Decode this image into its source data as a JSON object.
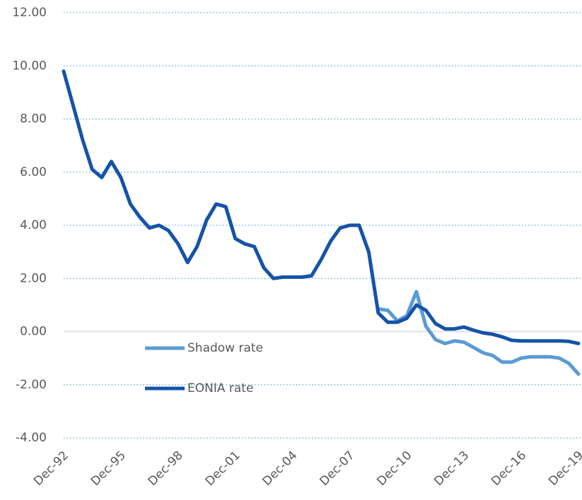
{
  "chart_data": {
    "type": "line",
    "categories": [
      "Dec-92",
      null,
      null,
      null,
      null,
      null,
      "Dec-95",
      null,
      null,
      null,
      null,
      null,
      "Dec-98",
      null,
      null,
      null,
      null,
      null,
      "Dec-01",
      null,
      null,
      null,
      null,
      null,
      "Dec-04",
      null,
      null,
      null,
      null,
      null,
      "Dec-07",
      null,
      null,
      null,
      null,
      null,
      "Dec-10",
      null,
      null,
      null,
      null,
      null,
      "Dec-13",
      null,
      null,
      null,
      null,
      null,
      "Dec-16",
      null,
      null,
      null,
      null,
      null,
      "Dec-19"
    ],
    "series": [
      {
        "name": "Shadow rate",
        "color": "#5b9bd5",
        "values": [
          null,
          null,
          null,
          null,
          null,
          null,
          null,
          null,
          null,
          null,
          null,
          null,
          null,
          null,
          null,
          null,
          null,
          null,
          null,
          null,
          null,
          null,
          null,
          null,
          null,
          null,
          null,
          null,
          null,
          null,
          null,
          null,
          null,
          0.85,
          0.8,
          0.4,
          0.6,
          1.5,
          0.2,
          -0.3,
          -0.45,
          -0.35,
          -0.4,
          -0.6,
          -0.8,
          -0.9,
          -1.15,
          -1.15,
          -1.0,
          -0.95,
          -0.95,
          -0.95,
          -1.0,
          -1.2,
          -1.6
        ]
      },
      {
        "name": "EONIA rate",
        "color": "#1553a8",
        "values": [
          9.8,
          8.5,
          7.2,
          6.1,
          5.8,
          6.4,
          5.8,
          4.8,
          4.3,
          3.9,
          4.0,
          3.8,
          3.3,
          2.6,
          3.2,
          4.2,
          4.8,
          4.7,
          3.5,
          3.3,
          3.2,
          2.4,
          2.0,
          2.05,
          2.05,
          2.05,
          2.1,
          2.7,
          3.4,
          3.9,
          4.0,
          4.0,
          3.0,
          0.7,
          0.35,
          0.35,
          0.5,
          1.0,
          0.8,
          0.3,
          0.1,
          0.1,
          0.17,
          0.05,
          -0.05,
          -0.1,
          -0.2,
          -0.33,
          -0.35,
          -0.35,
          -0.35,
          -0.35,
          -0.35,
          -0.37,
          -0.45
        ]
      }
    ],
    "ylim": [
      -4,
      12
    ],
    "yticks": [
      {
        "value": -4,
        "label": "-4.00"
      },
      {
        "value": -2,
        "label": "-2.00"
      },
      {
        "value": 0,
        "label": "0.00"
      },
      {
        "value": 2,
        "label": "2.00"
      },
      {
        "value": 4,
        "label": "4.00"
      },
      {
        "value": 6,
        "label": "6.00"
      },
      {
        "value": 8,
        "label": "8.00"
      },
      {
        "value": 10,
        "label": "10.00"
      },
      {
        "value": 12,
        "label": "12.00"
      }
    ],
    "grid": true,
    "legend": "lower left"
  }
}
